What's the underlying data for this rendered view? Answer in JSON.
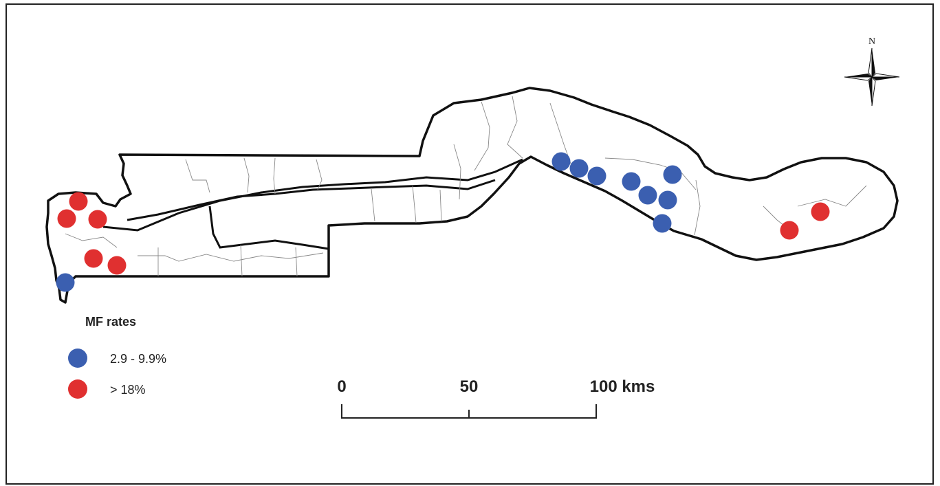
{
  "legend": {
    "title": "MF rates",
    "items": [
      {
        "label": "2.9 - 9.9%",
        "color": "#3b5fb0"
      },
      {
        "label": "> 18%",
        "color": "#e03030"
      }
    ]
  },
  "scale_bar": {
    "ticks": [
      "0",
      "50",
      "100 kms"
    ],
    "values_km": [
      0,
      50,
      100
    ]
  },
  "north_arrow": {
    "label": "N"
  },
  "sites": [
    {
      "category": "2.9 - 9.9%",
      "color": "#3b5fb0"
    },
    {
      "category": "2.9 - 9.9%",
      "color": "#3b5fb0"
    },
    {
      "category": "2.9 - 9.9%",
      "color": "#3b5fb0"
    },
    {
      "category": "2.9 - 9.9%",
      "color": "#3b5fb0"
    },
    {
      "category": "2.9 - 9.9%",
      "color": "#3b5fb0"
    },
    {
      "category": "2.9 - 9.9%",
      "color": "#3b5fb0"
    },
    {
      "category": "2.9 - 9.9%",
      "color": "#3b5fb0"
    },
    {
      "category": "2.9 - 9.9%",
      "color": "#3b5fb0"
    },
    {
      "category": "2.9 - 9.9%",
      "color": "#3b5fb0"
    },
    {
      "category": "> 18%",
      "color": "#e03030"
    },
    {
      "category": "> 18%",
      "color": "#e03030"
    },
    {
      "category": "> 18%",
      "color": "#e03030"
    },
    {
      "category": "> 18%",
      "color": "#e03030"
    },
    {
      "category": "> 18%",
      "color": "#e03030"
    },
    {
      "category": "> 18%",
      "color": "#e03030"
    },
    {
      "category": "> 18%",
      "color": "#e03030"
    }
  ]
}
